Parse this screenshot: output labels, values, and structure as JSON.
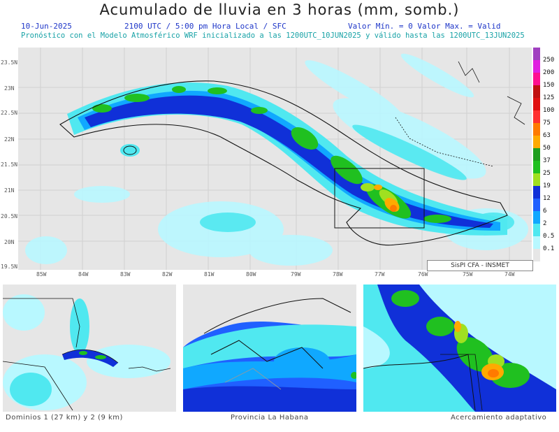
{
  "header": {
    "title": "Acumulado de lluvia en 3 horas (mm, somb.)",
    "date": "10-Jun-2025",
    "time": "2100 UTC / 5:00 pm Hora Local / SFC",
    "range": "Valor Mín. = 0  Valor Max. = Valid",
    "forecast": "Pronóstico con el Modelo Atmosférico WRF inicializado a las 1200UTC_10JUN2025 y válido hasta las  1200UTC_13JUN2025"
  },
  "axes": {
    "lat_labels": [
      "23.5N",
      "23N",
      "22.5N",
      "22N",
      "21.5N",
      "21N",
      "20.5N",
      "20N",
      "19.5N"
    ],
    "lon_labels": [
      "85W",
      "84W",
      "83W",
      "82W",
      "81W",
      "80W",
      "79W",
      "78W",
      "77W",
      "76W",
      "75W",
      "74W"
    ]
  },
  "scale": {
    "values": [
      "250",
      "200",
      "150",
      "125",
      "100",
      "75",
      "63",
      "50",
      "37",
      "25",
      "19",
      "12",
      "6",
      "2",
      "0.5",
      "0.1"
    ],
    "colors": [
      "#a040c0",
      "#e020e0",
      "#ff1090",
      "#c01010",
      "#e01010",
      "#ff3030",
      "#ff7a00",
      "#ffaa00",
      "#1e9e1e",
      "#20c020",
      "#a0e020",
      "#1030d8",
      "#2060ff",
      "#10a8ff",
      "#50e8f0",
      "#b8f8ff",
      "#e6e6e6"
    ]
  },
  "credit": "SisPI  CFA - INSMET",
  "panels": {
    "left_caption": "Dominios 1 (27 km) y 2 (9 km)",
    "middle_caption": "Provincia La Habana",
    "right_caption": "Acercamiento adaptativo"
  }
}
